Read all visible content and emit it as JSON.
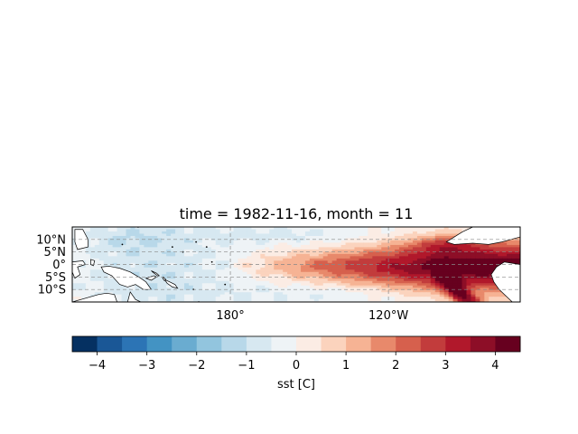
{
  "title": "time = 1982-11-16, month = 11",
  "map": {
    "lon_range": [
      120,
      290
    ],
    "lat_range": [
      -15,
      15
    ],
    "y_ticks": [
      {
        "lat": 10,
        "label": "10°N"
      },
      {
        "lat": 5,
        "label": "5°N"
      },
      {
        "lat": 0,
        "label": "0°"
      },
      {
        "lat": -5,
        "label": "5°S"
      },
      {
        "lat": -10,
        "label": "10°S"
      }
    ],
    "x_ticks": [
      {
        "lon": 180,
        "label": "180°"
      },
      {
        "lon": 240,
        "label": "120°W"
      }
    ],
    "gridlines": "dashed",
    "land_color": "#ffffff",
    "coastline_color": "#000000"
  },
  "colorbar": {
    "label": "sst [C]",
    "levels": [
      -4.5,
      -4.0,
      -3.5,
      -3.0,
      -2.5,
      -2.0,
      -1.5,
      -1.0,
      -0.5,
      0.0,
      0.5,
      1.0,
      1.5,
      2.0,
      2.5,
      3.0,
      3.5,
      4.0,
      4.5
    ],
    "colors": [
      "#053061",
      "#1a5796",
      "#2c74b5",
      "#4393c3",
      "#6aacd0",
      "#92c5de",
      "#b8d8e9",
      "#d7e8f1",
      "#eef3f6",
      "#fbece4",
      "#fbd3bd",
      "#f6b394",
      "#e8896b",
      "#d6604d",
      "#c23c3c",
      "#b1182b",
      "#8d0e27",
      "#67001f"
    ],
    "tick_values": [
      -4,
      -3,
      -2,
      -1,
      0,
      1,
      2,
      3,
      4
    ],
    "tick_labels": [
      "−4",
      "−3",
      "−2",
      "−1",
      "0",
      "1",
      "2",
      "3",
      "4"
    ]
  },
  "chart_data": {
    "type": "heatmap",
    "title": "time = 1982-11-16, month = 11",
    "variable": "sst [C]",
    "lon_range": [
      120,
      290
    ],
    "lat_range": [
      -15,
      15
    ],
    "vmin": -4.5,
    "vmax": 4.5,
    "features": [
      {
        "lon": 250,
        "lat": 0,
        "value": 4.3
      },
      {
        "lon": 235,
        "lat": -0.5,
        "value": 3.8
      },
      {
        "lon": 215,
        "lat": 0,
        "value": 3.0
      },
      {
        "lon": 200,
        "lat": 0,
        "value": 2.0
      },
      {
        "lon": 188,
        "lat": 0,
        "value": 1.0
      },
      {
        "lon": 272,
        "lat": -8,
        "value": 3.5
      },
      {
        "lon": 262,
        "lat": 8,
        "value": 1.5
      },
      {
        "lon": 155,
        "lat": -5,
        "value": -0.8
      },
      {
        "lon": 140,
        "lat": 10,
        "value": -0.7
      },
      {
        "lon": 200,
        "lat": 10,
        "value": -0.5
      },
      {
        "lon": 160,
        "lat": 12,
        "value": -0.5
      },
      {
        "lon": 230,
        "lat": -12,
        "value": -0.3
      }
    ]
  }
}
